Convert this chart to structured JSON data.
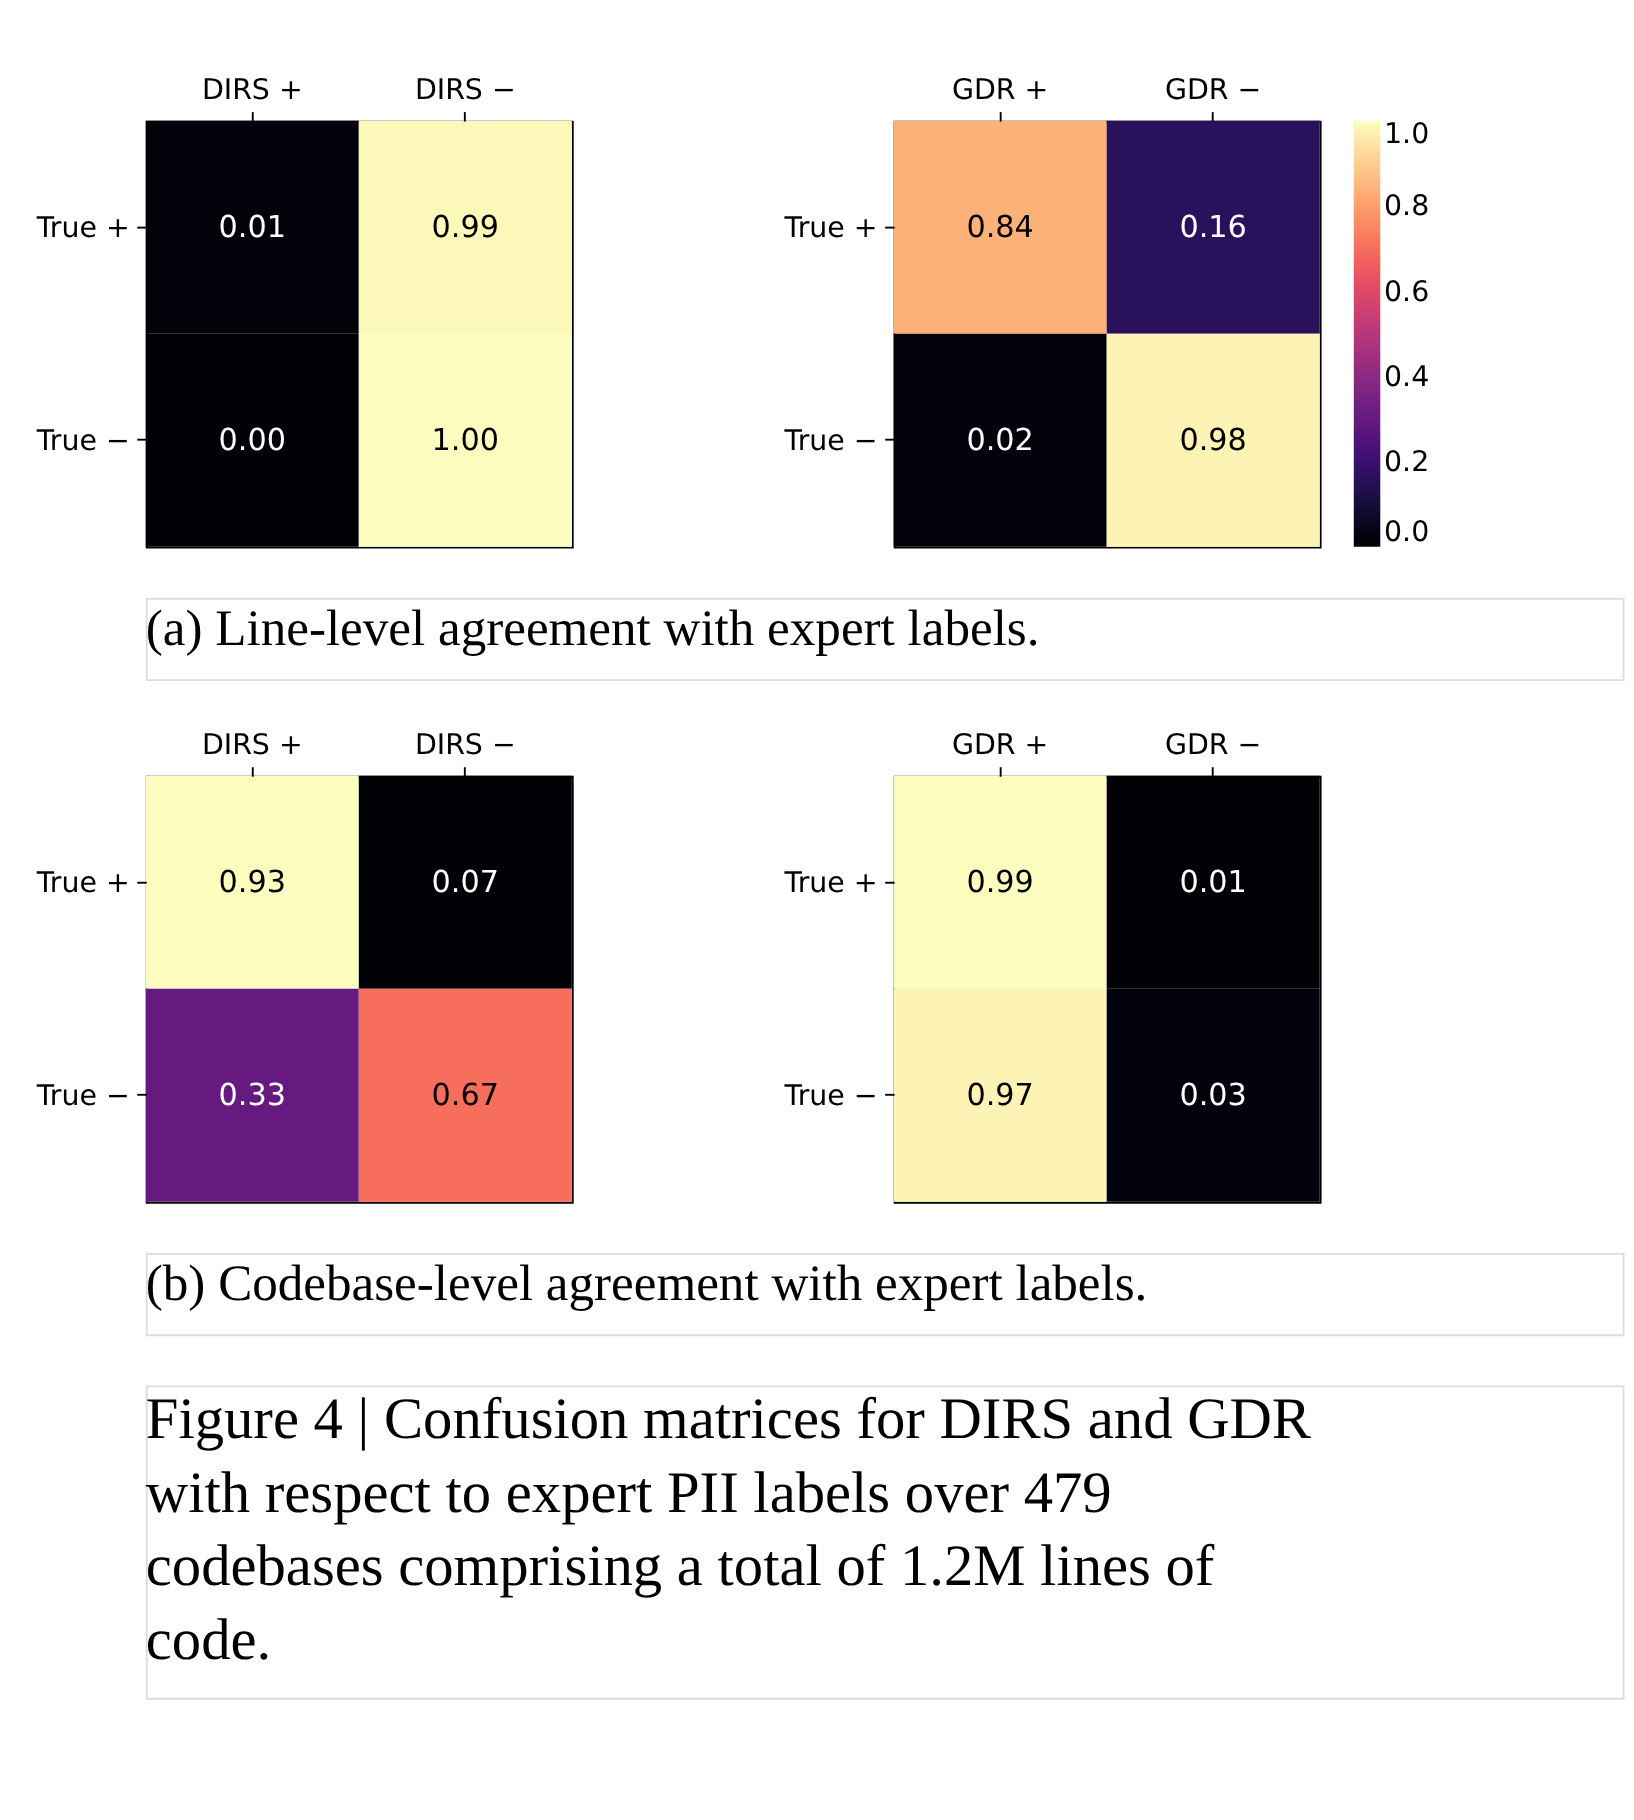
{
  "chart_data": [
    {
      "type": "heatmap",
      "categories": [
        "DIRS +",
        "DIRS −"
      ],
      "y_categories": [
        "True +",
        "True −"
      ],
      "cells": [
        [
          0.01,
          0.99
        ],
        [
          0.0,
          1.0
        ]
      ],
      "cell_labels": [
        [
          "0.01",
          "0.99"
        ],
        [
          "0.00",
          "1.00"
        ]
      ]
    },
    {
      "type": "heatmap",
      "categories": [
        "GDR +",
        "GDR −"
      ],
      "y_categories": [
        "True +",
        "True −"
      ],
      "cells": [
        [
          0.84,
          0.16
        ],
        [
          0.02,
          0.98
        ]
      ],
      "data_labels": true,
      "clim": [
        0,
        1
      ],
      "cticks": [
        {
          "value": 0,
          "label": "0.0"
        },
        0.2,
        0.4,
        0.6,
        0.8,
        {
          "value": 1,
          "label": "1.0"
        }
      ],
      "annotations": [
        "(a) Line-level agreement with expert labels."
      ]
    },
    {
      "type": "heatmap",
      "categories": [
        "DIRS +",
        "DIRS −"
      ],
      "y_categories": [
        "True +",
        "True −"
      ],
      "cells": [
        [
          0.93,
          0.07
        ],
        [
          0.33,
          0.67
        ]
      ],
      "data_labels": true
    },
    {
      "type": "heatmap",
      "categories": [
        "GDR +",
        "GDR −"
      ],
      "y_categories": [
        "True +",
        "True −"
      ],
      "cells": [
        [
          0.99,
          0.01
        ],
        [
          0.97,
          0.03
        ]
      ],
      "data_labels": true,
      "annotations": [
        "(b) Codebase-level agreement with expert labels.",
        "Figure 4 | Confusion matrices for DIRS and GDR with respect to expert PII labels over 479 codebases comprising a total of 1.2M lines of code."
      ]
    }
  ]
}
